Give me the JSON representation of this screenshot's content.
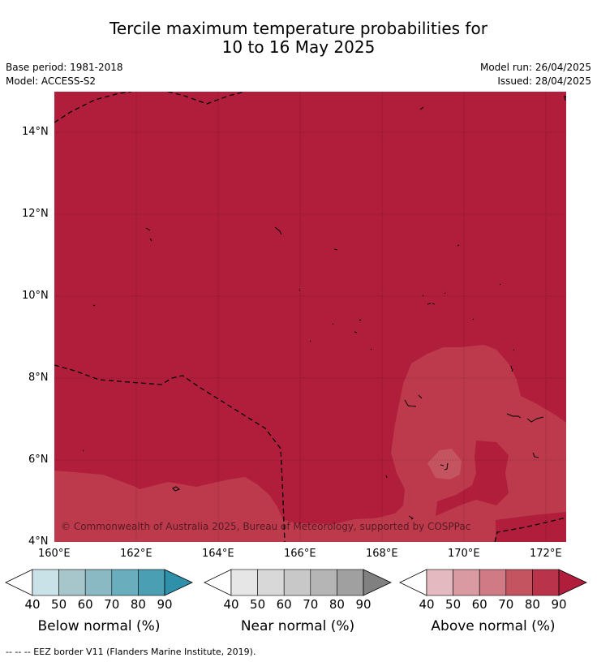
{
  "title_line1": "Tercile maximum temperature probabilities for",
  "title_line2": "10 to 16 May 2025",
  "base_period": "Base period: 1981-2018",
  "model": "Model: ACCESS-S2",
  "model_run": "Model run: 26/04/2025",
  "issued": "Issued: 28/04/2025",
  "copyright": "© Commonwealth of Australia 2025, Bureau of Meteorology, supported by COSPPac",
  "lat_labels": [
    "14°N",
    "12°N",
    "10°N",
    "8°N",
    "6°N",
    "4°N"
  ],
  "lon_labels": [
    "160°E",
    "162°E",
    "164°E",
    "166°E",
    "168°E",
    "170°E",
    "172°E"
  ],
  "colorbars": [
    {
      "label": "Below normal (%)",
      "ticks": [
        "40",
        "50",
        "60",
        "70",
        "80",
        "90"
      ],
      "colors": [
        "#ffffff",
        "#c9e2e7",
        "#a6c6cb",
        "#8ab8c3",
        "#6aaebe",
        "#4aa0b2",
        "#2f91a9"
      ]
    },
    {
      "label": "Near normal (%)",
      "ticks": [
        "40",
        "50",
        "60",
        "70",
        "80",
        "90"
      ],
      "colors": [
        "#ffffff",
        "#e6e6e6",
        "#d8d8d8",
        "#c8c8c8",
        "#b5b5b5",
        "#a0a0a0",
        "#808080"
      ]
    },
    {
      "label": "Above normal (%)",
      "ticks": [
        "40",
        "50",
        "60",
        "70",
        "80",
        "90"
      ],
      "colors": [
        "#ffffff",
        "#e4b9bf",
        "#d99aa2",
        "#cf7a85",
        "#c4545f",
        "#b9334a",
        "#b01e3b"
      ]
    }
  ],
  "footnote": "--  --  -- EEZ border V11 (Flanders Marine Institute, 2019).",
  "map_colors": {
    "above_90": "#b01e3b",
    "above_80": "#bd3a4c",
    "border": "#000000"
  }
}
